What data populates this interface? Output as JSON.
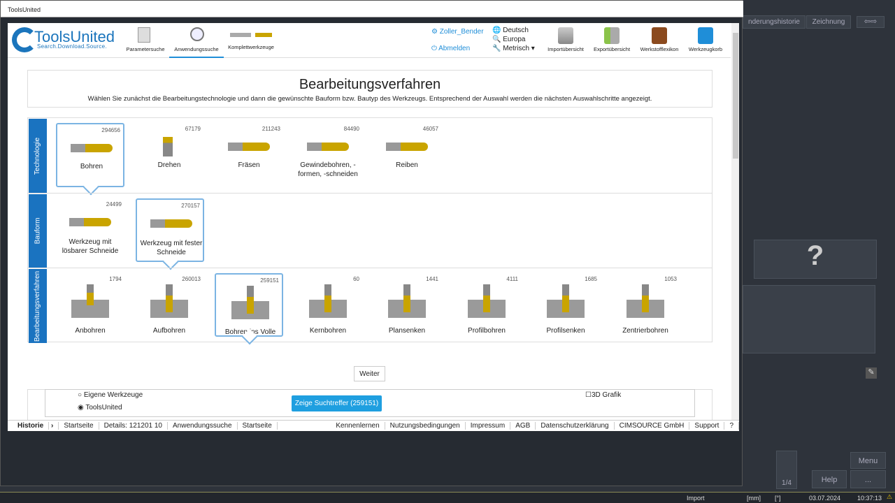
{
  "window": {
    "title": "ToolsUnited"
  },
  "header": {
    "logo": "ToolsUnited",
    "logo_tagline": "Search.Download.Source.",
    "nav": [
      {
        "label": "Parametersuche"
      },
      {
        "label": "Anwendungssuche",
        "active": true
      },
      {
        "label": "Komplettwerkzeuge"
      }
    ],
    "user": "Zoller_Bender",
    "logout": "Abmelden",
    "language": "Deutsch",
    "region": "Europa",
    "units": "Metrisch",
    "tools": [
      {
        "label": "Importübersicht"
      },
      {
        "label": "Exportübersicht"
      },
      {
        "label": "Werkstofflexikon"
      },
      {
        "label": "Werkzeugkorb"
      }
    ]
  },
  "intro": {
    "title": "Bearbeitungsverfahren",
    "text": "Wählen Sie zunächst die Bearbeitungstechnologie und dann die gewünschte Bauform bzw. Bautyp des Werkzeugs. Entsprechend der Auswahl werden die nächsten Auswahlschritte angezeigt."
  },
  "rows": [
    {
      "label": "Technologie",
      "items": [
        {
          "name": "Bohren",
          "count": "294656",
          "selected": true
        },
        {
          "name": "Drehen",
          "count": "67179"
        },
        {
          "name": "Fräsen",
          "count": "211243"
        },
        {
          "name": "Gewindebohren, -formen, -schneiden",
          "count": "84490"
        },
        {
          "name": "Reiben",
          "count": "46057"
        }
      ]
    },
    {
      "label": "Bauform",
      "items": [
        {
          "name": "Werkzeug mit lösbarer Schneide",
          "count": "24499"
        },
        {
          "name": "Werkzeug mit fester Schneide",
          "count": "270157",
          "selected": true
        }
      ]
    },
    {
      "label": "Bearbeitungsverfahren",
      "items": [
        {
          "name": "Anbohren",
          "count": "1794"
        },
        {
          "name": "Aufbohren",
          "count": "260013"
        },
        {
          "name": "Bohren ins Volle",
          "count": "259151",
          "selected": true
        },
        {
          "name": "Kernbohren",
          "count": "60"
        },
        {
          "name": "Plansenken",
          "count": "1441"
        },
        {
          "name": "Profilbohren",
          "count": "4111"
        },
        {
          "name": "Profilsenken",
          "count": "1685"
        },
        {
          "name": "Zentrierbohren",
          "count": "1053"
        }
      ]
    }
  ],
  "next_button": "Weiter",
  "search": {
    "radio_own": "Eigene Werkzeuge",
    "radio_tu": "ToolsUnited",
    "selected": "ToolsUnited",
    "show_button": "Zeige Suchtreffer (259151)",
    "grafik": "3D Grafik"
  },
  "footer": {
    "history": "Historie",
    "crumbs": [
      "Startseite",
      "Details: 121201 10",
      "Anwendungssuche",
      "Startseite"
    ],
    "links": [
      "Kennenlernen",
      "Nutzungsbedingungen",
      "Impressum",
      "AGB",
      "Datenschutzerklärung",
      "CIMSOURCE GmbH",
      "Support",
      "?"
    ]
  },
  "host": {
    "tabs": [
      "nderungshistorie",
      "Zeichnung"
    ],
    "f1": "F1",
    "page": "1/4",
    "menu": "Menu",
    "help": "Help",
    "more": "...",
    "status": [
      "Import",
      "[mm]",
      "[°]",
      "03.07.2024",
      "10:37:13"
    ]
  }
}
